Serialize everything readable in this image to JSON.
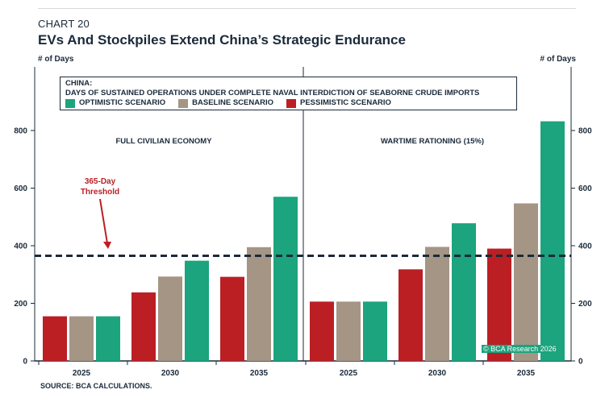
{
  "header": {
    "chart_number": "CHART 20",
    "title": "EVs And Stockpiles Extend China’s Strategic Endurance"
  },
  "legend": {
    "line1": "CHINA:",
    "line2": "DAYS OF SUSTAINED OPERATIONS UNDER COMPLETE NAVAL INTERDICTION OF SEABORNE CRUDE IMPORTS",
    "items": [
      "OPTIMISTIC SCENARIO",
      "BASELINE SCENARIO",
      "PESSIMISTIC SCENARIO"
    ]
  },
  "source": "SOURCE: BCA CALCULATIONS.",
  "watermark": "© BCA Research 2026",
  "annotation": {
    "line1": "365-Day",
    "line2": "Threshold"
  },
  "colors": {
    "pessimistic": "#bb1f24",
    "baseline": "#a59585",
    "optimistic": "#1ba47d",
    "axis": "#1b2a3a",
    "annotation": "#bb1f24"
  },
  "chart_data": {
    "type": "bar",
    "ylabel_left": "# of Days",
    "ylabel_right": "# of Days",
    "ylim": [
      0,
      850
    ],
    "yticks": [
      0,
      200,
      400,
      600,
      800
    ],
    "threshold": 365,
    "panels": [
      {
        "title": "FULL CIVILIAN ECONOMY",
        "categories": [
          "2025",
          "2030",
          "2035"
        ],
        "series": [
          {
            "name": "PESSIMISTIC SCENARIO",
            "values": [
              155,
              238,
              292
            ]
          },
          {
            "name": "BASELINE SCENARIO",
            "values": [
              155,
              293,
              395
            ]
          },
          {
            "name": "OPTIMISTIC SCENARIO",
            "values": [
              155,
              348,
              570
            ]
          }
        ]
      },
      {
        "title": "WARTIME RATIONING (15%)",
        "categories": [
          "2025",
          "2030",
          "2035"
        ],
        "series": [
          {
            "name": "PESSIMISTIC SCENARIO",
            "values": [
              206,
              318,
              390
            ]
          },
          {
            "name": "BASELINE SCENARIO",
            "values": [
              206,
              396,
              547
            ]
          },
          {
            "name": "OPTIMISTIC SCENARIO",
            "values": [
              206,
              478,
              832
            ]
          }
        ]
      }
    ]
  }
}
